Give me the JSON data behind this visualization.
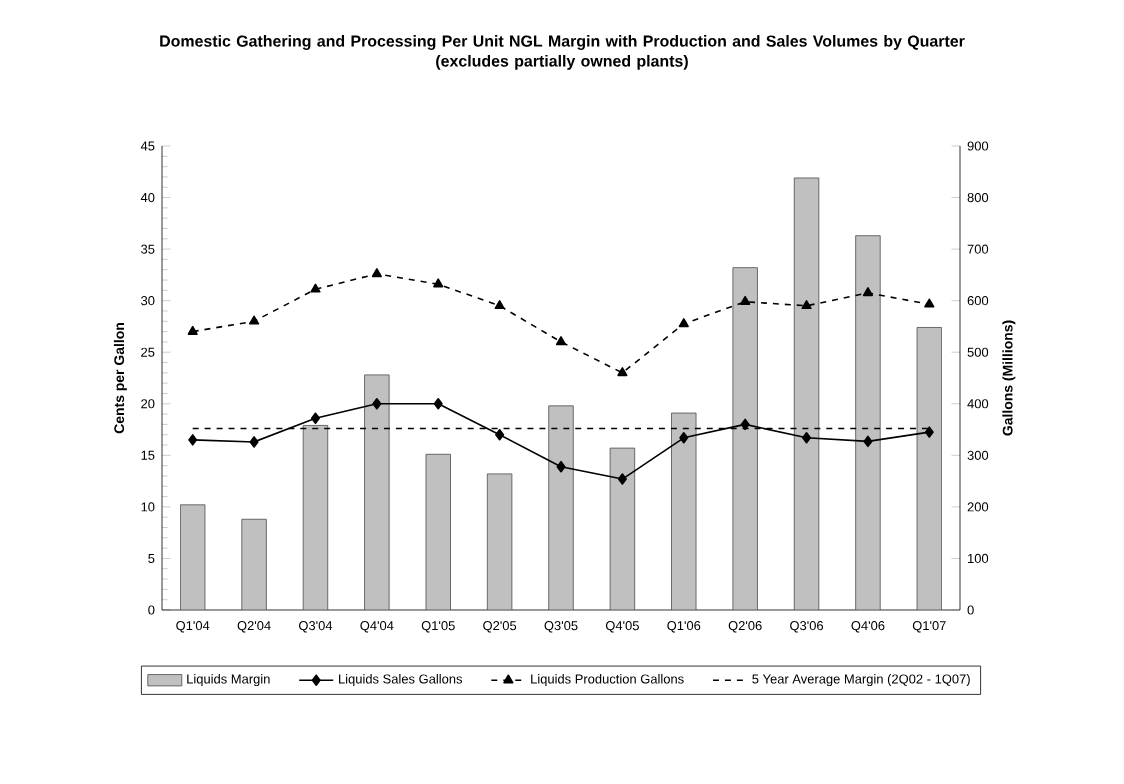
{
  "chart_data": {
    "type": "bar",
    "title": "Domestic Gathering and Processing Per Unit NGL Margin with Production and Sales Volumes by Quarter",
    "subtitle": "(excludes partially owned plants)",
    "ylabel": "Cents per Gallon",
    "y2label": "Gallons (Millions)",
    "categories": [
      "Q1'04",
      "Q2'04",
      "Q3'04",
      "Q4'04",
      "Q1'05",
      "Q2'05",
      "Q3'05",
      "Q4'05",
      "Q1'06",
      "Q2'06",
      "Q3'06",
      "Q4'06",
      "Q1'07"
    ],
    "series": [
      {
        "name": "Liquids Margin",
        "color": "#c0c0c0",
        "values": [
          10.2,
          8.8,
          17.9,
          22.8,
          15.1,
          13.2,
          19.8,
          15.7,
          19.1,
          33.2,
          41.9,
          36.3,
          27.4
        ]
      },
      {
        "name": "Liquids Sales Gallons",
        "type": "line",
        "axis": "y2",
        "color": "#000000",
        "marker": "diamond",
        "line_style": "solid",
        "values": [
          330,
          326,
          372,
          400,
          400,
          340,
          278,
          254,
          334,
          360,
          334,
          327,
          345
        ]
      },
      {
        "name": "Liquids Production Gallons",
        "type": "line",
        "axis": "y2",
        "color": "#000000",
        "marker": "triangle",
        "line_style": "dashed",
        "values": [
          540,
          560,
          622,
          652,
          632,
          590,
          520,
          460,
          555,
          598,
          590,
          615,
          593
        ]
      },
      {
        "name": "5 Year Average Margin (2Q02 - 1Q07)",
        "type": "line",
        "color": "#000000",
        "marker": "none",
        "line_style": "dashed",
        "values": [
          17.6,
          17.6,
          17.6,
          17.6,
          17.6,
          17.6,
          17.6,
          17.6,
          17.6,
          17.6,
          17.6,
          17.6,
          17.6
        ]
      }
    ],
    "ylim": [
      0,
      45
    ],
    "yticks": [
      0,
      5,
      10,
      15,
      20,
      25,
      30,
      35,
      40,
      45
    ],
    "y2lim": [
      0,
      900
    ],
    "y2ticks": [
      0,
      100,
      200,
      300,
      400,
      500,
      600,
      700,
      800,
      900
    ],
    "legend": "bottom",
    "grid": false
  }
}
